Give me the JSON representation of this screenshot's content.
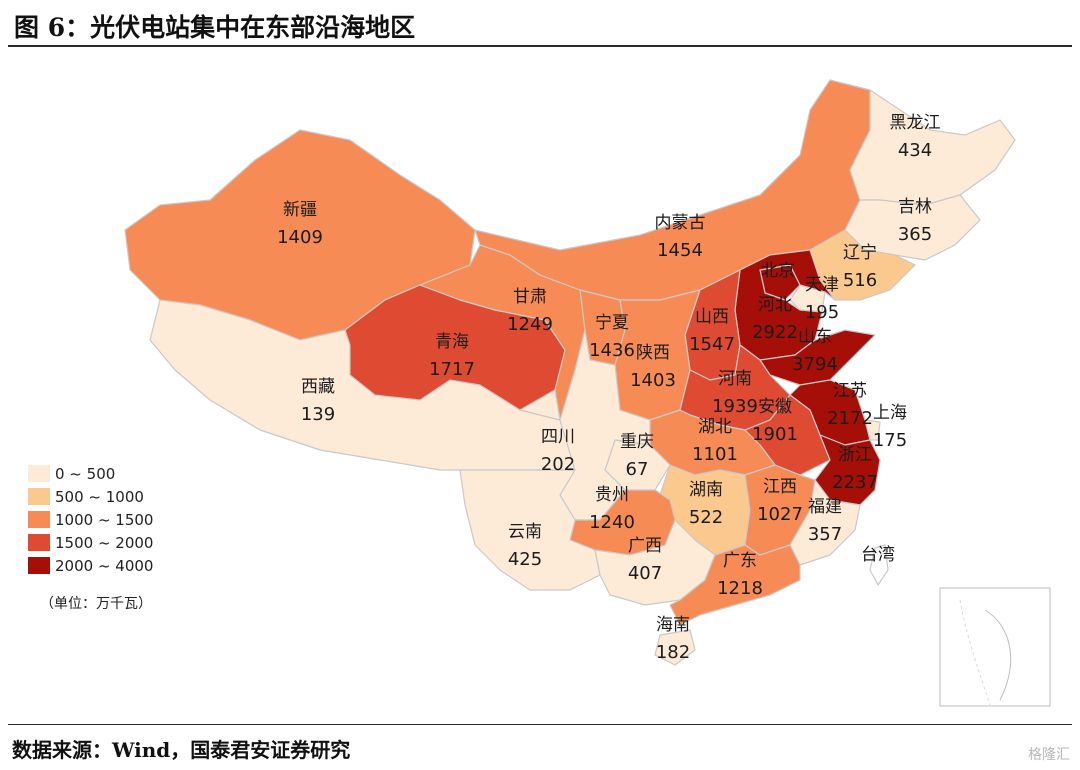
{
  "title": "图 6：光伏电站集中在东部沿海地区",
  "source": "数据来源：Wind，国泰君安证券研究",
  "unit_note": "（单位：万千瓦）",
  "watermark": "格隆汇",
  "legend": [
    {
      "label": "0 ~ 500",
      "color": "#fdebd8"
    },
    {
      "label": "500 ~ 1000",
      "color": "#fbc98d"
    },
    {
      "label": "1000 ~ 1500",
      "color": "#f78b55"
    },
    {
      "label": "1500 ~ 2000",
      "color": "#de4a32"
    },
    {
      "label": "2000 ~ 4000",
      "color": "#a50f08"
    }
  ],
  "provinces": [
    {
      "name": "黑龙江",
      "value": "434"
    },
    {
      "name": "吉林",
      "value": "365"
    },
    {
      "name": "辽宁",
      "value": "516"
    },
    {
      "name": "内蒙古",
      "value": "1454"
    },
    {
      "name": "新疆",
      "value": "1409"
    },
    {
      "name": "北京",
      "value": ""
    },
    {
      "name": "天津",
      "value": "195"
    },
    {
      "name": "河北",
      "value": "2922"
    },
    {
      "name": "山东",
      "value": "3794"
    },
    {
      "name": "山西",
      "value": "1547"
    },
    {
      "name": "陕西",
      "value": "1403"
    },
    {
      "name": "宁夏",
      "value": "1436"
    },
    {
      "name": "甘肃",
      "value": "1249"
    },
    {
      "name": "青海",
      "value": "1717"
    },
    {
      "name": "西藏",
      "value": "139"
    },
    {
      "name": "四川",
      "value": "202"
    },
    {
      "name": "重庆",
      "value": "67"
    },
    {
      "name": "河南",
      "value": "1939"
    },
    {
      "name": "湖北",
      "value": "1101"
    },
    {
      "name": "安徽",
      "value": "1901"
    },
    {
      "name": "江苏",
      "value": "2172"
    },
    {
      "name": "上海",
      "value": "175"
    },
    {
      "name": "浙江",
      "value": "2237"
    },
    {
      "name": "湖南",
      "value": "522"
    },
    {
      "name": "江西",
      "value": "1027"
    },
    {
      "name": "福建",
      "value": "357"
    },
    {
      "name": "贵州",
      "value": "1240"
    },
    {
      "name": "云南",
      "value": "425"
    },
    {
      "name": "广西",
      "value": "407"
    },
    {
      "name": "广东",
      "value": "1218"
    },
    {
      "name": "海南",
      "value": "182"
    },
    {
      "name": "台湾",
      "value": ""
    }
  ]
}
